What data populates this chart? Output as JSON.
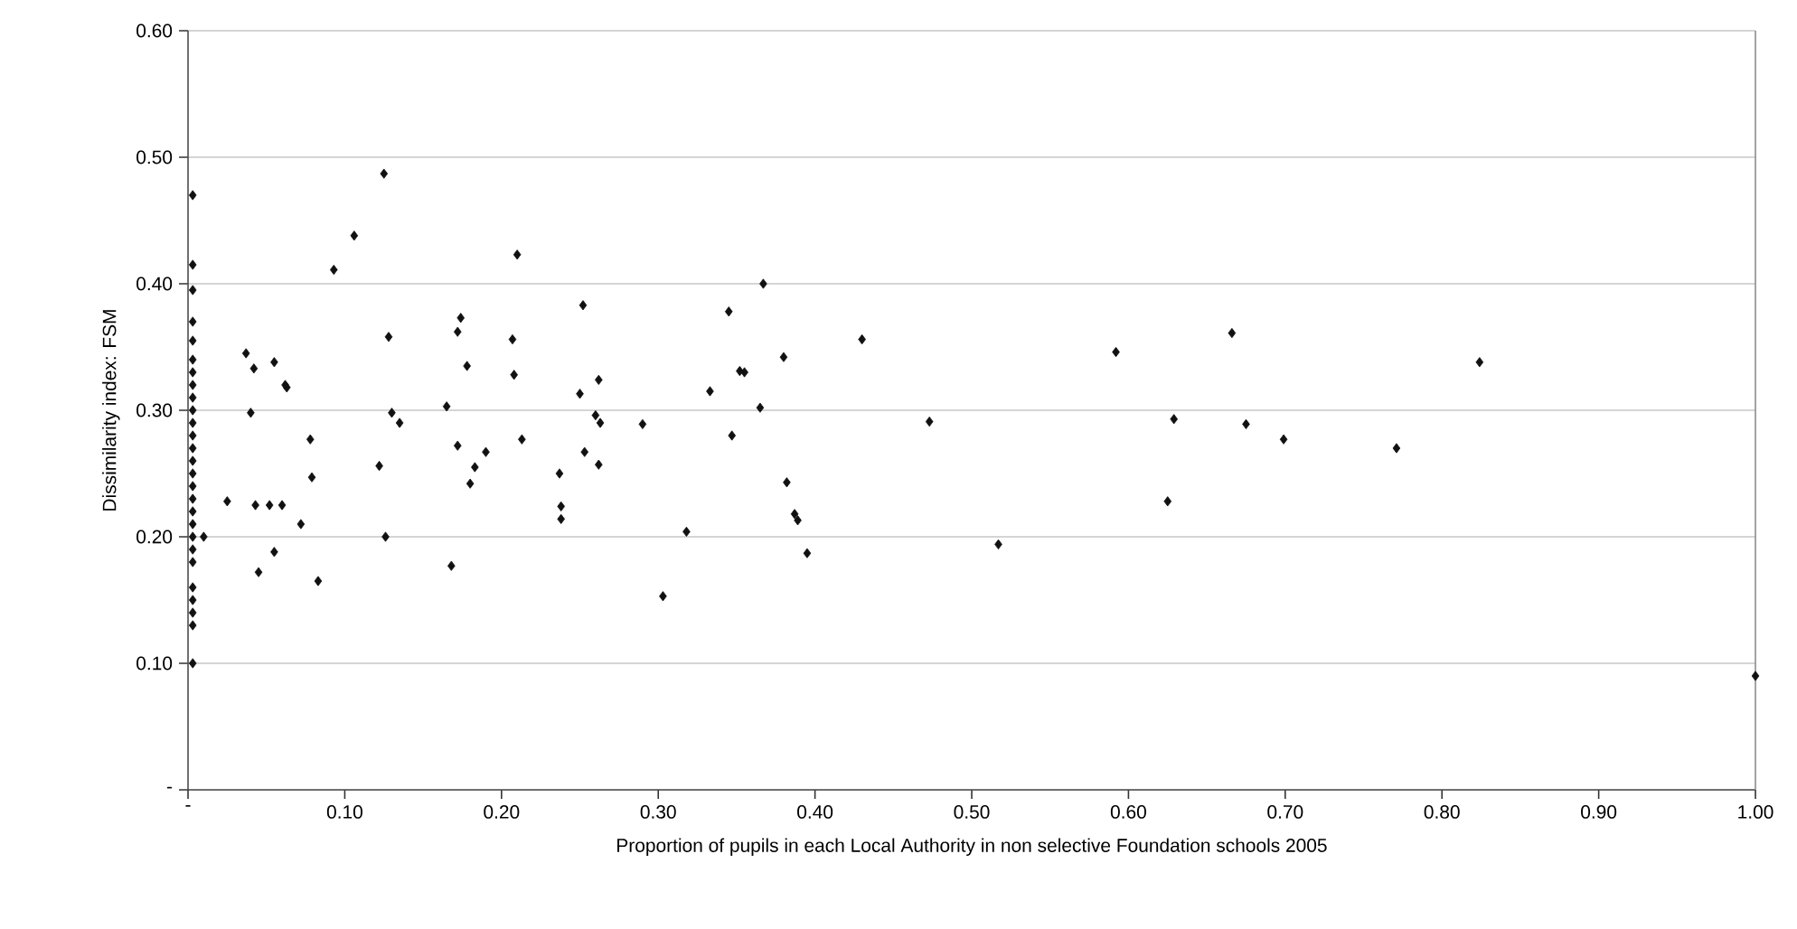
{
  "chart_data": {
    "type": "scatter",
    "xlabel": "Proportion of pupils in each Local Authority in non selective Foundation schools 2005",
    "ylabel": "Dissimilarity index: FSM",
    "x": [
      0.003,
      0.003,
      0.003,
      0.003,
      0.003,
      0.003,
      0.003,
      0.003,
      0.003,
      0.003,
      0.003,
      0.003,
      0.003,
      0.003,
      0.003,
      0.003,
      0.003,
      0.003,
      0.003,
      0.003,
      0.003,
      0.003,
      0.003,
      0.003,
      0.003,
      0.003,
      0.003,
      0.01,
      0.025,
      0.037,
      0.04,
      0.042,
      0.043,
      0.045,
      0.052,
      0.055,
      0.055,
      0.06,
      0.062,
      0.063,
      0.072,
      0.078,
      0.079,
      0.083,
      0.093,
      0.106,
      0.122,
      0.125,
      0.126,
      0.128,
      0.13,
      0.135,
      0.165,
      0.168,
      0.172,
      0.172,
      0.174,
      0.178,
      0.18,
      0.183,
      0.19,
      0.207,
      0.208,
      0.21,
      0.213,
      0.237,
      0.238,
      0.238,
      0.25,
      0.252,
      0.253,
      0.26,
      0.262,
      0.263,
      0.262,
      0.29,
      0.303,
      0.318,
      0.333,
      0.345,
      0.347,
      0.352,
      0.355,
      0.365,
      0.367,
      0.38,
      0.382,
      0.387,
      0.389,
      0.395,
      0.43,
      0.473,
      0.517,
      0.592,
      0.625,
      0.629,
      0.666,
      0.675,
      0.699,
      0.771,
      0.824,
      1.0
    ],
    "values": [
      0.47,
      0.415,
      0.395,
      0.37,
      0.355,
      0.34,
      0.33,
      0.32,
      0.31,
      0.3,
      0.29,
      0.28,
      0.27,
      0.26,
      0.25,
      0.24,
      0.23,
      0.22,
      0.21,
      0.2,
      0.19,
      0.18,
      0.16,
      0.15,
      0.14,
      0.13,
      0.1,
      0.2,
      0.228,
      0.345,
      0.298,
      0.333,
      0.225,
      0.172,
      0.225,
      0.188,
      0.338,
      0.225,
      0.32,
      0.318,
      0.21,
      0.277,
      0.247,
      0.165,
      0.411,
      0.438,
      0.256,
      0.487,
      0.2,
      0.358,
      0.298,
      0.29,
      0.303,
      0.177,
      0.362,
      0.272,
      0.373,
      0.335,
      0.242,
      0.255,
      0.267,
      0.356,
      0.328,
      0.423,
      0.277,
      0.25,
      0.224,
      0.214,
      0.313,
      0.383,
      0.267,
      0.296,
      0.324,
      0.29,
      0.257,
      0.289,
      0.153,
      0.204,
      0.315,
      0.378,
      0.28,
      0.331,
      0.33,
      0.302,
      0.4,
      0.342,
      0.243,
      0.218,
      0.213,
      0.187,
      0.356,
      0.291,
      0.194,
      0.346,
      0.228,
      0.293,
      0.361,
      0.289,
      0.277,
      0.27,
      0.338,
      0.09
    ],
    "color": "#111111",
    "marker": "diamond",
    "grid": "y",
    "xlim": [
      0,
      1
    ],
    "ylim": [
      0,
      0.6
    ],
    "xticks": [
      {
        "value": 0,
        "label": "-"
      },
      {
        "value": 0.1,
        "label": "0.10"
      },
      {
        "value": 0.2,
        "label": "0.20"
      },
      {
        "value": 0.3,
        "label": "0.30"
      },
      {
        "value": 0.4,
        "label": "0.40"
      },
      {
        "value": 0.5,
        "label": "0.50"
      },
      {
        "value": 0.6,
        "label": "0.60"
      },
      {
        "value": 0.7,
        "label": "0.70"
      },
      {
        "value": 0.8,
        "label": "0.80"
      },
      {
        "value": 0.9,
        "label": "0.90"
      },
      {
        "value": 1,
        "label": "1.00"
      }
    ],
    "yticks": [
      {
        "value": 0,
        "label": "-"
      },
      {
        "value": 0.1,
        "label": "0.10"
      },
      {
        "value": 0.2,
        "label": "0.20"
      },
      {
        "value": 0.3,
        "label": "0.30"
      },
      {
        "value": 0.4,
        "label": "0.40"
      },
      {
        "value": 0.5,
        "label": "0.50"
      },
      {
        "value": 0.6,
        "label": "0.60"
      }
    ]
  }
}
